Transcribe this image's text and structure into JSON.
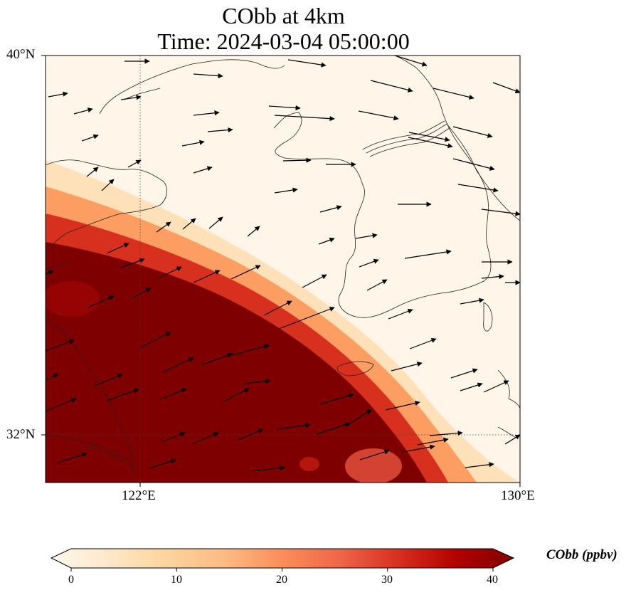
{
  "title": {
    "line1": "CObb at 4km",
    "line2": "Time: 2024-03-04 05:00:00"
  },
  "map": {
    "lon_range": [
      120,
      130
    ],
    "lat_range": [
      31,
      40
    ],
    "lon_ticks": [
      {
        "value": 122,
        "label": "122°E"
      },
      {
        "value": 130,
        "label": "130°E"
      }
    ],
    "lat_ticks": [
      {
        "value": 40,
        "label": "40°N"
      },
      {
        "value": 32,
        "label": "32°N"
      }
    ],
    "gridlines": "dotted",
    "field": {
      "variable": "CObb",
      "pattern": "high concentration plume over southwest, sharp diagonal edge from ~120°E 36.5°N to ~129.5°E 31°N, low values elsewhere"
    },
    "vectors": "wind arrows pointing mostly east-northeast"
  },
  "colorbar": {
    "label": "CObb (ppbv)",
    "min": 0,
    "max": 40,
    "ticks": [
      {
        "value": 0,
        "label": "0"
      },
      {
        "value": 10,
        "label": "10"
      },
      {
        "value": 20,
        "label": "20"
      },
      {
        "value": 30,
        "label": "30"
      },
      {
        "value": 40,
        "label": "40"
      }
    ],
    "extend": "both",
    "colormap": [
      "#fff7ec",
      "#fee8c8",
      "#fdd49e",
      "#fdbb84",
      "#fc8d59",
      "#ef6548",
      "#d7301f",
      "#b30000",
      "#7f0000"
    ]
  }
}
